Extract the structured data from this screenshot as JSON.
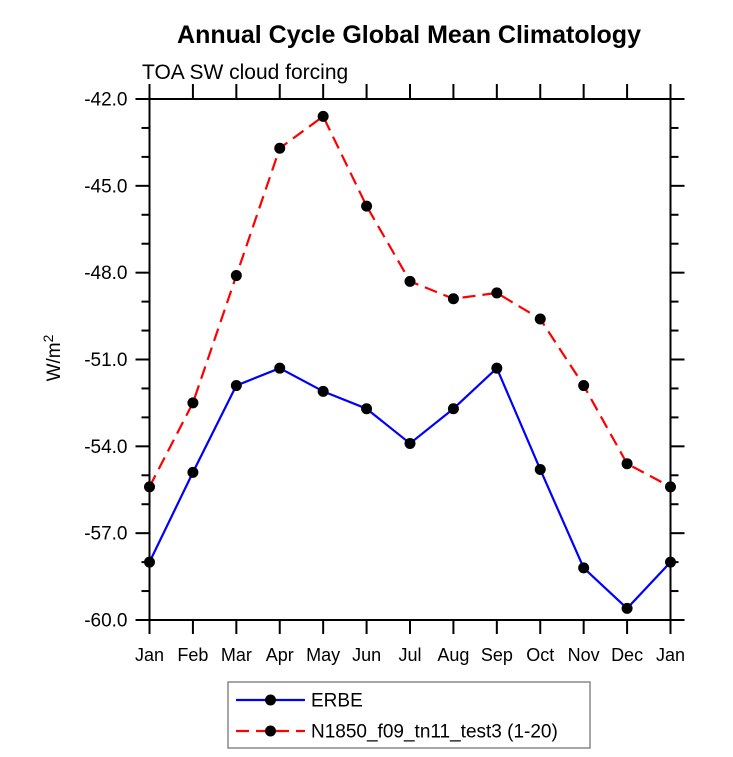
{
  "header": {
    "title": "Annual Cycle Global Mean Climatology",
    "subtitle": "TOA SW cloud forcing"
  },
  "colors": {
    "erbe_line": "#0000ff",
    "model_line": "#ff0000",
    "marker": "#000000",
    "axis": "#000000",
    "legend_border": "#888888"
  },
  "chart_data": {
    "type": "line",
    "title": "Annual Cycle Global Mean Climatology",
    "subtitle": "TOA SW cloud forcing",
    "ylabel": "W/m²",
    "ylabel_base": "W/m",
    "ylabel_exp": "2",
    "xlabel": "",
    "categories": [
      "Jan",
      "Feb",
      "Mar",
      "Apr",
      "May",
      "Jun",
      "Jul",
      "Aug",
      "Sep",
      "Oct",
      "Nov",
      "Dec",
      "Jan"
    ],
    "ylim": [
      -60.0,
      -42.0
    ],
    "ytick_major": [
      -42,
      -45,
      -48,
      -51,
      -54,
      -57,
      -60
    ],
    "ytick_labels": [
      "-42.0",
      "-45.0",
      "-48.0",
      "-51.0",
      "-54.0",
      "-57.0",
      "-60.0"
    ],
    "ytick_minor_step": 1.0,
    "grid": false,
    "legend_position": "bottom-center",
    "series": [
      {
        "name": "ERBE",
        "color": "#0000ff",
        "style": "solid",
        "marker": "circle",
        "values": [
          -58.0,
          -54.9,
          -51.9,
          -51.3,
          -52.1,
          -52.7,
          -53.9,
          -52.7,
          -51.3,
          -54.8,
          -58.2,
          -59.6,
          -58.0
        ]
      },
      {
        "name": "N1850_f09_tn11_test3 (1-20)",
        "color": "#ff0000",
        "style": "dashed",
        "marker": "circle",
        "values": [
          -55.4,
          -52.5,
          -48.1,
          -43.7,
          -42.6,
          -45.7,
          -48.3,
          -48.9,
          -48.7,
          -49.6,
          -51.9,
          -54.6,
          -55.4
        ]
      }
    ]
  }
}
